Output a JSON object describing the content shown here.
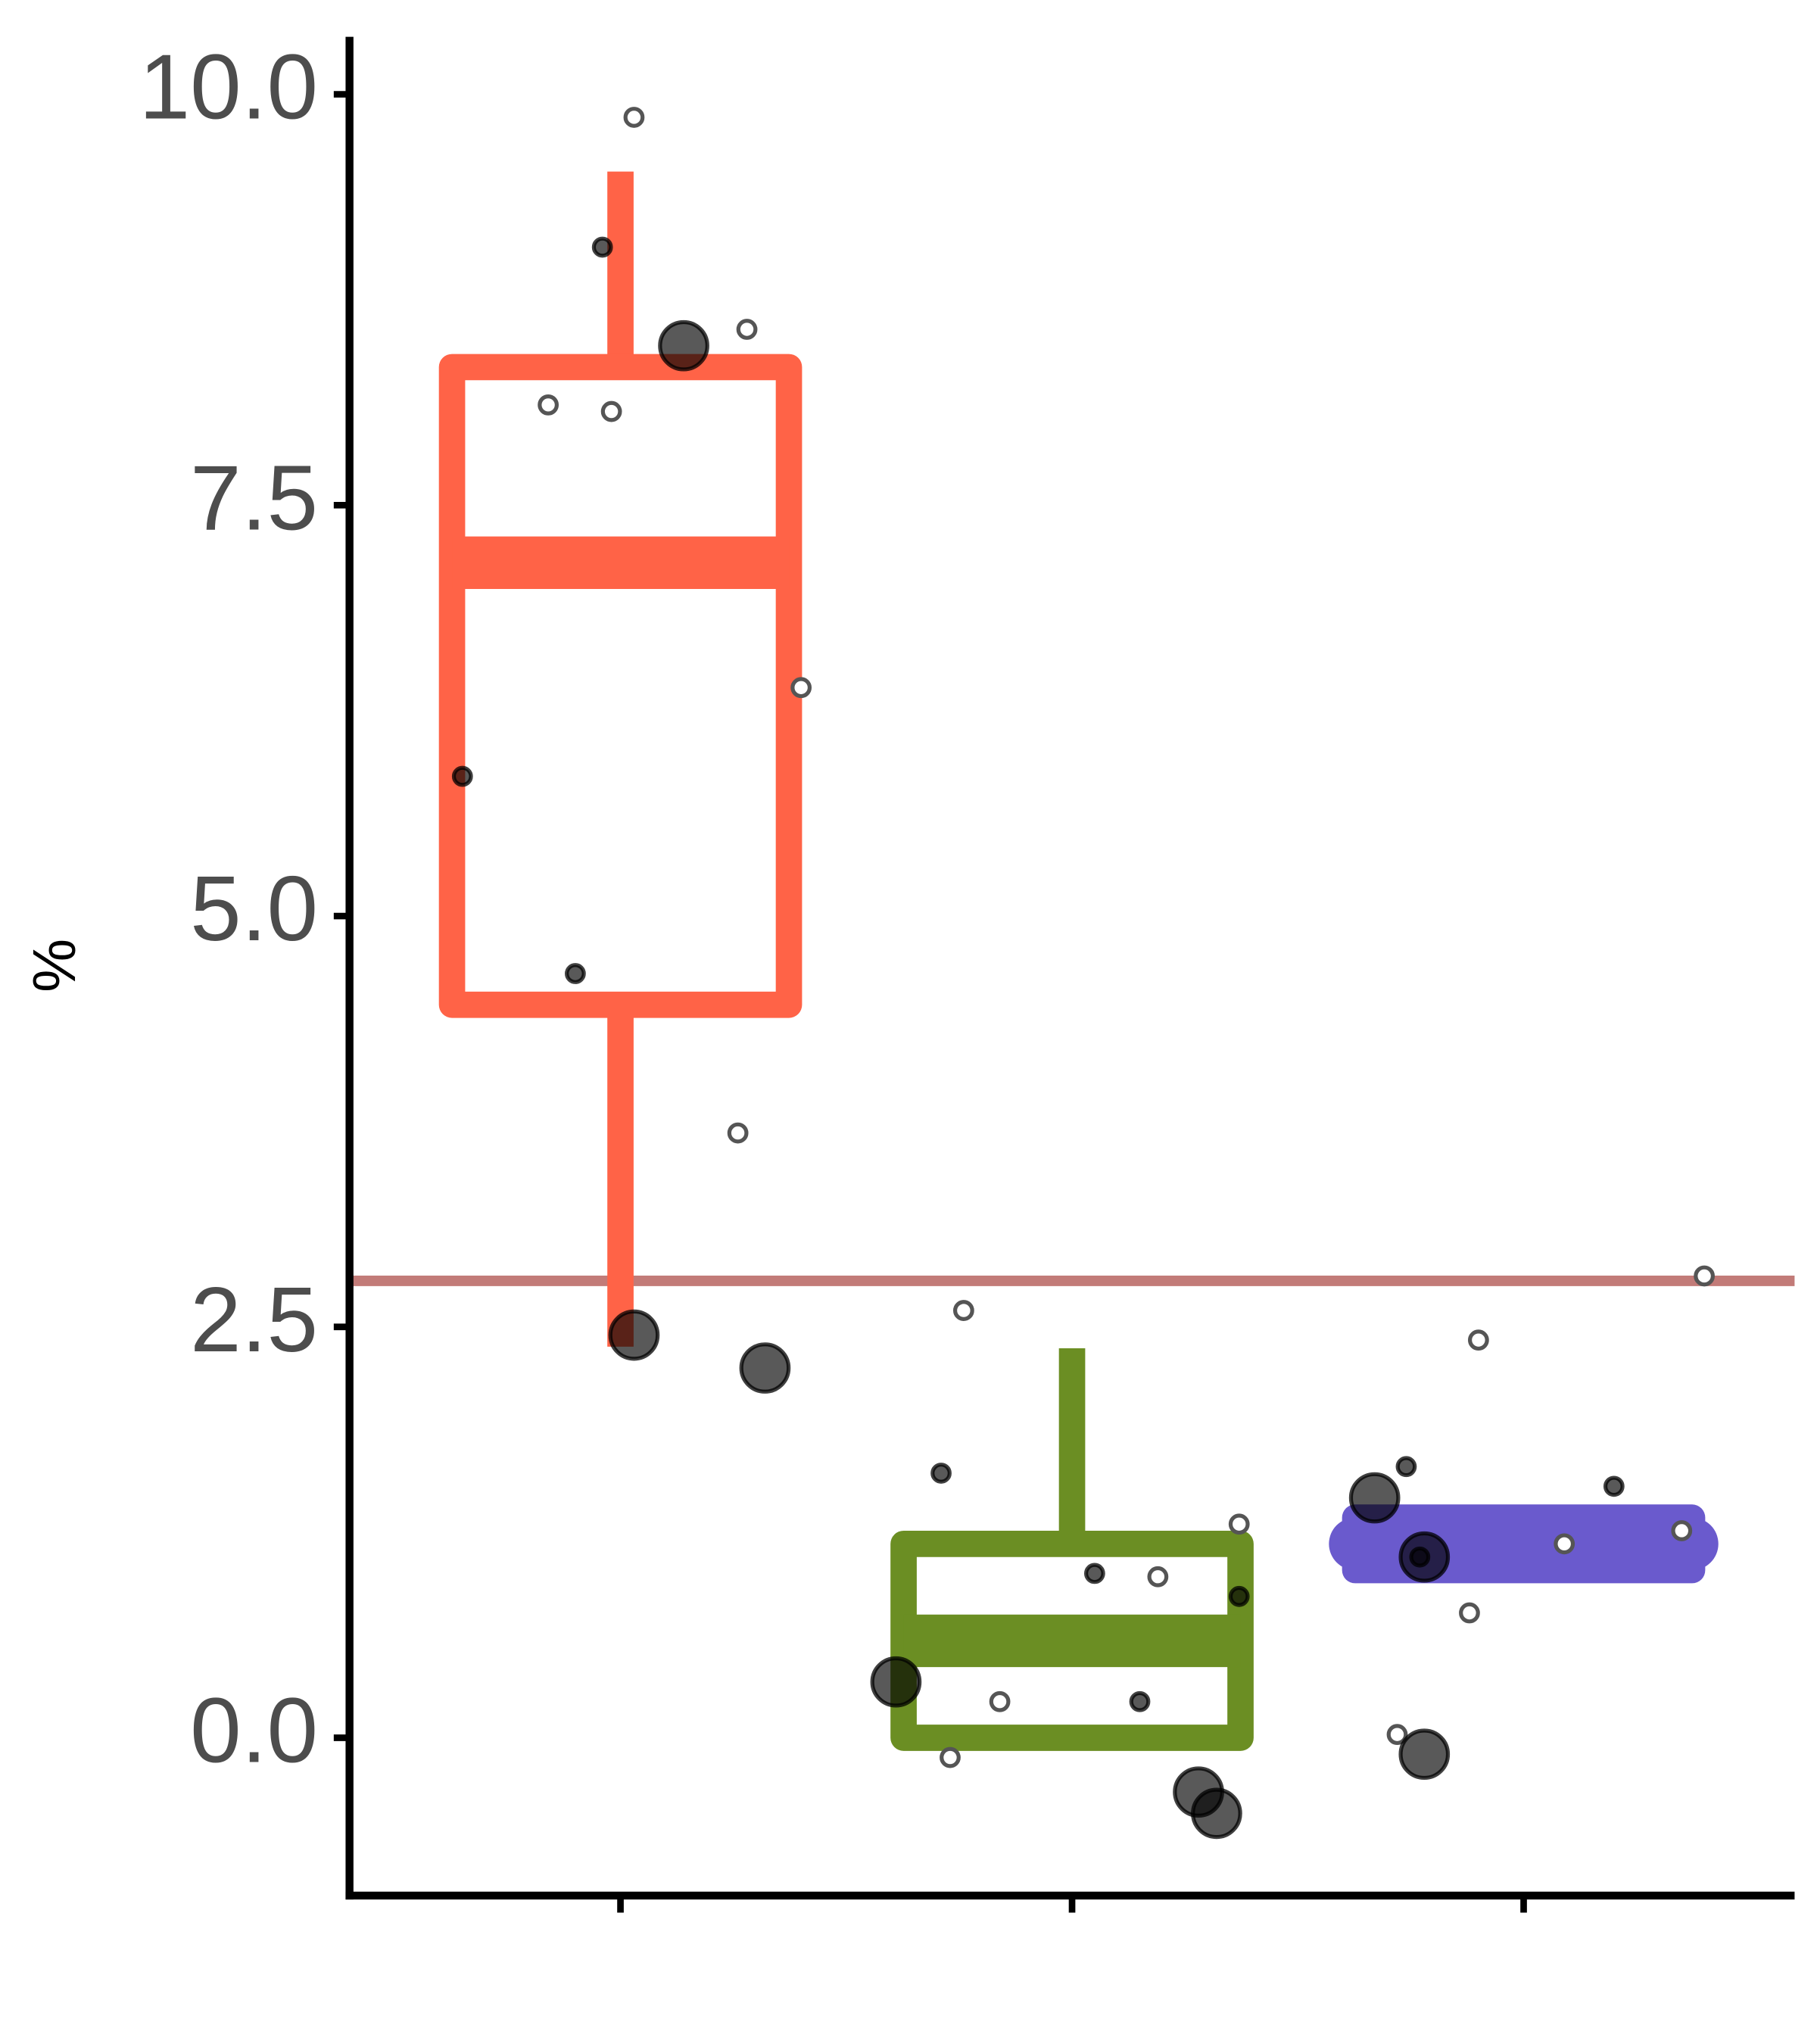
{
  "chart_data": {
    "type": "box",
    "y_label": "%",
    "categories": [
      null,
      null,
      null
    ],
    "xlim": [
      0.4,
      3.6
    ],
    "ylim": [
      -0.96,
      10.35
    ],
    "yticks": [
      {
        "value": 0,
        "label": "0.0"
      },
      2.5,
      {
        "value": 5,
        "label": "5.0"
      },
      7.5,
      {
        "value": 10,
        "label": "10.0"
      }
    ],
    "boxes": [
      {
        "color": "#ff6347",
        "whisker_low": 2.38,
        "q1": 4.46,
        "median": 7.15,
        "q3": 8.34,
        "whisker_high": 9.53
      },
      {
        "color": "#6b8e23",
        "whisker_low": 0.0,
        "q1": 0.0,
        "median": 0.59,
        "q3": 1.18,
        "whisker_high": 2.37
      },
      {
        "color": "#6a5acd",
        "whisker_low": 1.02,
        "q1": 1.02,
        "median": 1.18,
        "q3": 1.34,
        "whisker_high": 1.34
      }
    ],
    "reference_line": {
      "value": 2.78,
      "color": "#c27b78"
    },
    "points": [
      {
        "style": "hollow",
        "size": "small",
        "x": [
          1.03,
          1.28,
          0.84,
          0.98,
          1.4,
          1.26,
          1.76,
          2.37,
          2.19,
          1.84,
          1.73,
          3.4,
          2.9,
          3.35,
          3.09,
          2.88,
          2.72
        ],
        "y": [
          9.86,
          8.57,
          8.11,
          8.07,
          6.39,
          3.68,
          2.6,
          1.3,
          0.98,
          0.22,
          -0.12,
          2.81,
          2.42,
          1.26,
          1.18,
          0.76,
          0.02
        ]
      },
      {
        "style": "filled",
        "size": "small",
        "x": [
          0.96,
          0.65,
          0.9,
          1.71,
          2.05,
          2.37,
          2.15,
          2.74,
          3.2,
          2.77
        ],
        "y": [
          9.07,
          5.85,
          4.65,
          1.61,
          1.0,
          0.86,
          0.22,
          1.65,
          1.53,
          1.1
        ]
      },
      {
        "style": "filled",
        "size": "large",
        "x": [
          1.14,
          1.03,
          1.32,
          1.61,
          2.28,
          2.32,
          2.67,
          2.78,
          2.78
        ],
        "y": [
          8.47,
          2.45,
          2.25,
          0.34,
          -0.33,
          -0.46,
          1.46,
          1.1,
          -0.1
        ]
      }
    ]
  }
}
